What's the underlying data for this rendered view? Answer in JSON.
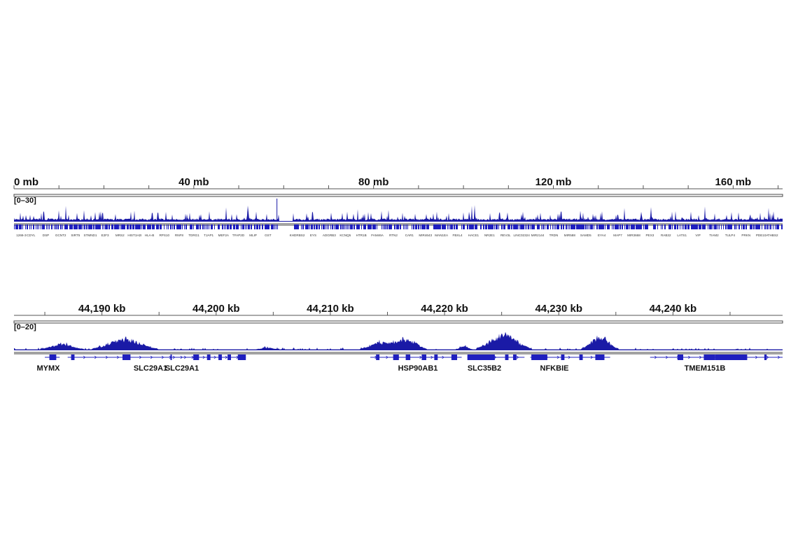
{
  "colors": {
    "coverage": "#1a1aa6",
    "gene": "#1f1fbf",
    "axis": "#555555"
  },
  "chart_data": [
    {
      "type": "area",
      "panel": "whole-chromosome",
      "x_unit": "mb",
      "xlim": [
        0,
        171
      ],
      "ylim": [
        0,
        30
      ],
      "range_label": "[0–30]",
      "ticks": [
        {
          "value": 0,
          "label": "0 mb"
        },
        {
          "value": 40,
          "label": "40 mb"
        },
        {
          "value": 80,
          "label": "80 mb"
        },
        {
          "value": 120,
          "label": "120 mb"
        },
        {
          "value": 160,
          "label": "160 mb"
        }
      ],
      "minor_tick_step": 10,
      "gap_mb": [
        59,
        62
      ],
      "genes_left": [
        "1266-3",
        "CDYL",
        "DSP",
        "GCNT2",
        "SIRT5",
        "STMND1",
        "E2F3",
        "MRS2",
        "HIST1H2I",
        "HLA-B",
        "RPS10",
        "RNF8",
        "TDRG1",
        "TJAP1",
        "MEF2A",
        "TFAP2D",
        "MLIP",
        "GST"
      ],
      "genes_right": [
        "KHDRBS2",
        "EYS",
        "ADGRB3",
        "KCNQ5",
        "HTR1B",
        "FAM46A",
        "RTN2",
        "CAR1",
        "MIR4643",
        "MAN1EA",
        "FBXL4",
        "HACE1",
        "NR2E1",
        "REV3L",
        "LINC02324",
        "MIR2144",
        "TRDN",
        "MIR588",
        "SAMD5",
        "EYA4",
        "MAP7",
        "MIR3668",
        "PEX3",
        "RAB32",
        "LATS1",
        "VIP",
        "TIAM2",
        "TULP4",
        "PRKN",
        "PDE10A",
        "THBS2"
      ]
    },
    {
      "type": "area",
      "panel": "zoomed-region",
      "x_unit": "kb",
      "xlim": [
        44182.3,
        44249.6
      ],
      "ylim": [
        0,
        20
      ],
      "range_label": "[0–20]",
      "ticks": [
        {
          "value": 44190,
          "label": "44,190 kb"
        },
        {
          "value": 44200,
          "label": "44,200 kb"
        },
        {
          "value": 44210,
          "label": "44,210 kb"
        },
        {
          "value": 44220,
          "label": "44,220 kb"
        },
        {
          "value": 44230,
          "label": "44,230 kb"
        },
        {
          "value": 44240,
          "label": "44,240 kb"
        }
      ],
      "minor_tick_step": 5,
      "peaks": [
        {
          "center": 44186.5,
          "height": 6,
          "width": 1.2
        },
        {
          "center": 44192.0,
          "height": 12,
          "width": 1.8
        },
        {
          "center": 44204.5,
          "height": 2,
          "width": 0.6
        },
        {
          "center": 44214.5,
          "height": 8,
          "width": 1.2
        },
        {
          "center": 44216.7,
          "height": 12,
          "width": 1.1
        },
        {
          "center": 44221.7,
          "height": 4,
          "width": 0.4
        },
        {
          "center": 44225.2,
          "height": 17,
          "width": 1.5
        },
        {
          "center": 44233.6,
          "height": 15,
          "width": 1.0
        }
      ],
      "genes": [
        {
          "name": "MYMX",
          "start": 44185.0,
          "end": 44186.3,
          "exons": [
            [
              44185.4,
              44186.0
            ]
          ]
        },
        {
          "name": "SLC29A1",
          "start": 44187.0,
          "end": 44199.5,
          "exons": [
            [
              44187.3,
              44187.6
            ],
            [
              44191.8,
              44192.5
            ],
            [
              44196.0,
              44196.1
            ]
          ]
        },
        {
          "name": "SLC29A1",
          "start": 44195.5,
          "end": 44202.6,
          "exons": [
            [
              44198.0,
              44198.5
            ],
            [
              44199.2,
              44199.5
            ],
            [
              44200.2,
              44200.5
            ],
            [
              44201.0,
              44201.3
            ],
            [
              44201.9,
              44202.6
            ]
          ]
        },
        {
          "name": "HSP90AB1",
          "start": 44213.5,
          "end": 44221.5,
          "exons": [
            [
              44214.0,
              44214.3
            ],
            [
              44215.5,
              44216.0
            ],
            [
              44216.6,
              44217.0
            ],
            [
              44218.0,
              44218.4
            ],
            [
              44219.1,
              44219.4
            ],
            [
              44220.6,
              44221.1
            ]
          ]
        },
        {
          "name": "SLC35B2",
          "start": 44222.0,
          "end": 44227.0,
          "exons": [
            [
              44222.0,
              44224.4
            ],
            [
              44225.3,
              44225.6
            ],
            [
              44226.0,
              44226.3
            ]
          ]
        },
        {
          "name": "NFKBIE",
          "start": 44227.5,
          "end": 44234.5,
          "exons": [
            [
              44227.6,
              44229.0
            ],
            [
              44230.2,
              44230.5
            ],
            [
              44231.8,
              44232.1
            ],
            [
              44233.2,
              44234.0
            ]
          ]
        },
        {
          "name": "TMEM151B",
          "start": 44238.0,
          "end": 44249.6,
          "exons": [
            [
              44240.4,
              44240.9
            ],
            [
              44242.7,
              44243.7
            ],
            [
              44243.7,
              44246.5
            ],
            [
              44248.0,
              44248.2
            ]
          ]
        }
      ]
    }
  ]
}
